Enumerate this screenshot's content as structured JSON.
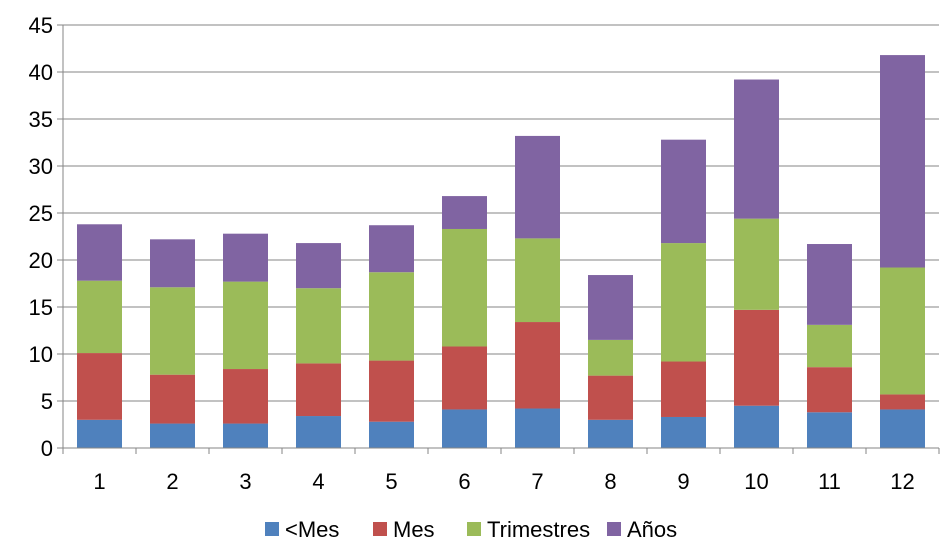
{
  "chart_data": {
    "type": "bar",
    "stacked": true,
    "categories": [
      "1",
      "2",
      "3",
      "4",
      "5",
      "6",
      "7",
      "8",
      "9",
      "10",
      "11",
      "12"
    ],
    "series": [
      {
        "name": "<Mes",
        "color": "#4F81BD",
        "values": [
          3.0,
          2.6,
          2.6,
          3.4,
          2.8,
          4.1,
          4.2,
          3.0,
          3.3,
          4.5,
          3.8,
          4.1
        ]
      },
      {
        "name": "Mes",
        "color": "#C0504D",
        "values": [
          7.1,
          5.2,
          5.8,
          5.6,
          6.5,
          6.7,
          9.2,
          4.7,
          5.9,
          10.2,
          4.8,
          1.6
        ]
      },
      {
        "name": "Trimestres",
        "color": "#9BBB59",
        "values": [
          7.7,
          9.3,
          9.3,
          8.0,
          9.4,
          12.5,
          8.9,
          3.8,
          12.6,
          9.7,
          4.5,
          13.5
        ]
      },
      {
        "name": "Años",
        "color": "#8064A2",
        "values": [
          6.0,
          5.1,
          5.1,
          4.8,
          5.0,
          3.5,
          10.9,
          6.9,
          11.0,
          14.8,
          8.6,
          22.6
        ]
      }
    ],
    "yticks": [
      "0",
      "5",
      "10",
      "15",
      "20",
      "25",
      "30",
      "35",
      "40",
      "45"
    ],
    "ylim": [
      0,
      45
    ],
    "grid": true,
    "legend_position": "bottom"
  }
}
